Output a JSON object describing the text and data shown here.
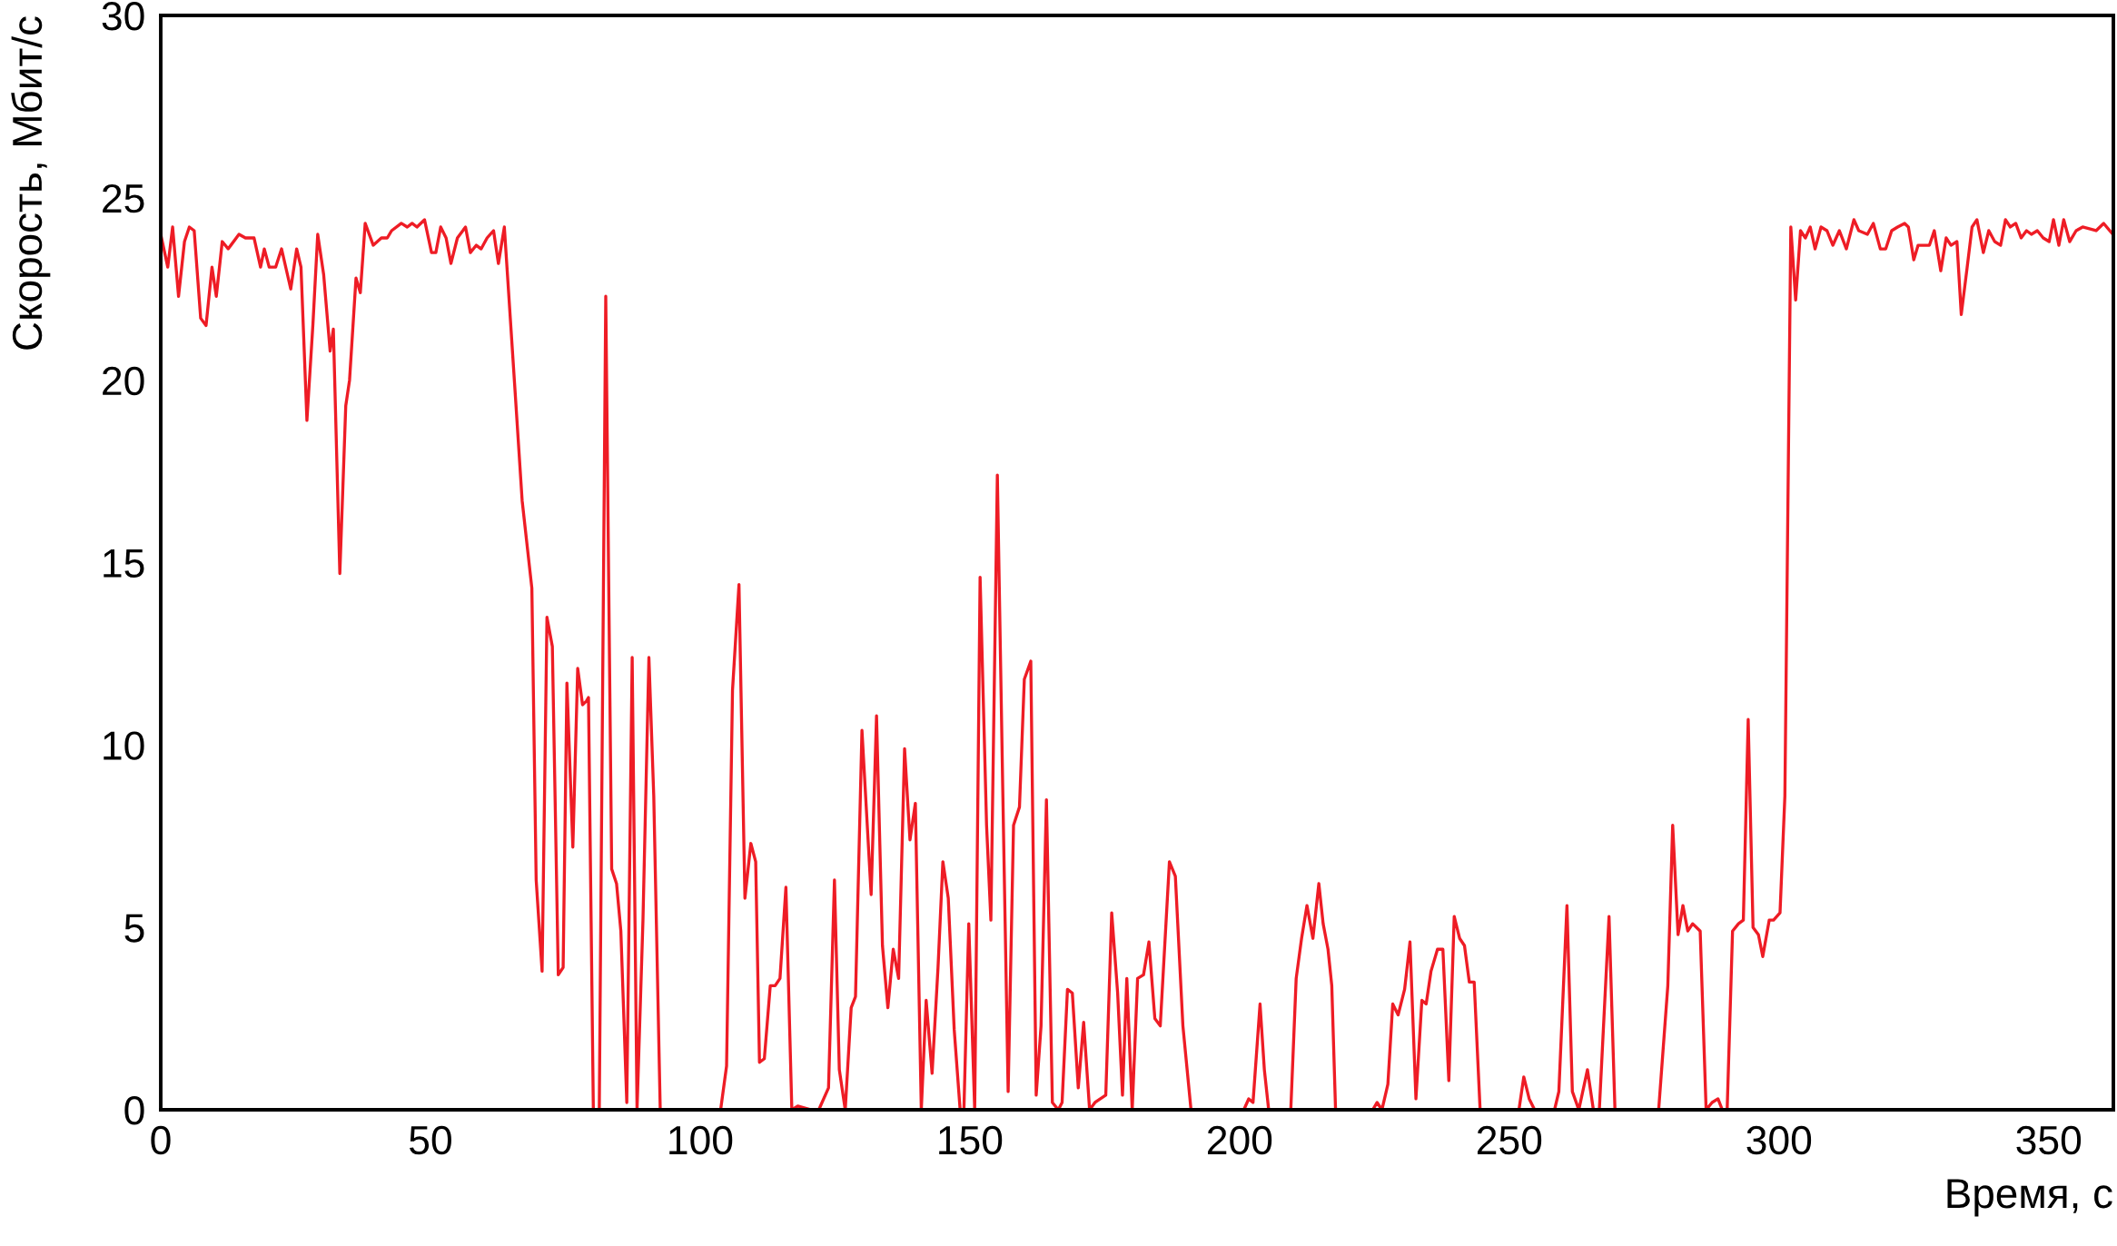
{
  "chart_data": {
    "type": "line",
    "xlabel": "Время, с",
    "ylabel": "Скорость, Мбит/с",
    "xlim": [
      0,
      362
    ],
    "ylim": [
      0,
      30
    ],
    "xticks": [
      0,
      50,
      100,
      150,
      200,
      250,
      300,
      350
    ],
    "yticks": [
      0,
      5,
      10,
      15,
      20,
      25,
      30
    ],
    "grid": false,
    "series": [
      {
        "color": "#ee1c25",
        "x": [
          0,
          1.3,
          2.2,
          3.3,
          4.4,
          5.3,
          6.2,
          7.4,
          8.4,
          9.5,
          10.3,
          11.4,
          12.5,
          14.5,
          15.7,
          17.3,
          18.5,
          19.2,
          20.1,
          21.3,
          22.4,
          24.1,
          25.2,
          26.0,
          27.1,
          28.2,
          29.1,
          30.2,
          31.4,
          32.0,
          33.2,
          34.3,
          35.0,
          36.2,
          37.0,
          37.9,
          39.4,
          40.9,
          42.0,
          42.8,
          44.6,
          45.7,
          46.6,
          47.5,
          48.9,
          50.2,
          51.0,
          51.9,
          52.9,
          53.8,
          55.0,
          56.5,
          57.4,
          58.5,
          59.4,
          60.5,
          61.7,
          62.6,
          63.7,
          65.6,
          67.0,
          68.8,
          69.6,
          70.7,
          71.6,
          72.6,
          73.7,
          74.6,
          75.3,
          76.4,
          77.3,
          78.2,
          78.9,
          79.3,
          80.2,
          81.3,
          82.5,
          83.6,
          84.5,
          85.3,
          86.4,
          87.4,
          88.3,
          89.4,
          90.5,
          91.4,
          92.6,
          103.8,
          104.9,
          106.0,
          107.2,
          108.3,
          109.4,
          110.3,
          111.0,
          111.9,
          113.0,
          113.9,
          114.8,
          115.9,
          117.0,
          118.1,
          120.6,
          122.0,
          123.8,
          124.9,
          125.8,
          126.9,
          128.0,
          128.8,
          130.0,
          131.7,
          132.7,
          133.8,
          134.8,
          135.8,
          136.8,
          137.9,
          138.9,
          139.9,
          141.0,
          141.9,
          143.0,
          144.1,
          145.0,
          146.0,
          147.1,
          148.2,
          148.9,
          149.8,
          150.9,
          151.9,
          153.1,
          153.9,
          155.1,
          156.1,
          157.1,
          158.1,
          159.2,
          160.1,
          161.3,
          162.3,
          163.2,
          164.2,
          165.3,
          166.4,
          167.1,
          168.1,
          169.0,
          170.1,
          171.1,
          172.2,
          173.2,
          175.2,
          176.3,
          177.4,
          178.3,
          179.1,
          180.1,
          181.1,
          182.2,
          183.2,
          184.3,
          185.3,
          187.0,
          188.1,
          189.5,
          191.0,
          200.8,
          201.7,
          202.5,
          203.8,
          204.6,
          205.4,
          209.5,
          210.5,
          211.5,
          212.5,
          213.6,
          214.7,
          215.5,
          216.4,
          217.1,
          217.8,
          224.7,
          225.5,
          226.4,
          227.5,
          228.4,
          229.4,
          230.6,
          231.6,
          232.7,
          233.8,
          234.6,
          235.5,
          236.7,
          237.7,
          238.8,
          239.8,
          240.8,
          241.7,
          242.6,
          243.5,
          244.6,
          251.8,
          252.7,
          253.7,
          254.7,
          258.4,
          259.2,
          260.7,
          261.7,
          262.9,
          264.5,
          265.6,
          266.7,
          268.5,
          269.6,
          277.7,
          279.4,
          280.3,
          281.3,
          282.2,
          283.1,
          284.0,
          285.4,
          286.5,
          287.6,
          288.7,
          289.5,
          290.4,
          291.4,
          292.5,
          293.4,
          294.3,
          295.2,
          296.2,
          297.0,
          298.2,
          299.0,
          300.2,
          301.1,
          302.2,
          303.1,
          304.0,
          304.9,
          305.8,
          306.7,
          307.8,
          308.9,
          310.0,
          311.2,
          312.5,
          313.9,
          314.8,
          316.4,
          317.5,
          318.8,
          319.8,
          320.9,
          322.0,
          323.3,
          324.0,
          325.0,
          325.8,
          327.9,
          328.8,
          330.0,
          331.0,
          331.9,
          333.0,
          333.8,
          334.9,
          335.8,
          336.7,
          337.9,
          338.9,
          340.0,
          341.1,
          342.0,
          342.9,
          343.9,
          344.9,
          345.9,
          346.8,
          347.9,
          349.0,
          350.1,
          350.9,
          351.9,
          352.8,
          353.9,
          355.1,
          356.3,
          358.8,
          360.2,
          361.9
        ],
        "values": [
          24.0,
          23.1,
          24.2,
          22.3,
          23.8,
          24.2,
          24.1,
          21.7,
          21.5,
          23.1,
          22.3,
          23.8,
          23.6,
          24.0,
          23.9,
          23.9,
          23.1,
          23.6,
          23.1,
          23.1,
          23.6,
          22.5,
          23.6,
          23.1,
          18.9,
          21.5,
          24.0,
          22.9,
          20.8,
          21.4,
          14.7,
          19.3,
          20.0,
          22.8,
          22.4,
          24.3,
          23.7,
          23.9,
          23.9,
          24.1,
          24.3,
          24.2,
          24.3,
          24.2,
          24.4,
          23.5,
          23.5,
          24.2,
          23.9,
          23.2,
          23.9,
          24.2,
          23.5,
          23.7,
          23.6,
          23.9,
          24.1,
          23.2,
          24.2,
          19.9,
          16.7,
          14.3,
          6.3,
          3.8,
          13.5,
          12.7,
          3.7,
          3.9,
          11.7,
          7.2,
          12.1,
          11.1,
          11.2,
          11.3,
          0,
          0,
          22.3,
          6.6,
          6.2,
          4.9,
          0.2,
          12.4,
          0,
          5.2,
          12.4,
          8.6,
          0,
          0,
          1.2,
          11.5,
          14.4,
          5.8,
          7.3,
          6.8,
          1.3,
          1.4,
          3.4,
          3.4,
          3.6,
          6.1,
          0,
          0.1,
          0,
          0,
          0.6,
          6.3,
          1.1,
          0,
          2.8,
          3.1,
          10.4,
          5.9,
          10.8,
          4.5,
          2.8,
          4.4,
          3.6,
          9.9,
          7.4,
          8.4,
          0,
          3.0,
          1.0,
          3.9,
          6.8,
          5.8,
          2.2,
          0,
          0,
          5.1,
          0,
          14.6,
          7.8,
          5.2,
          17.4,
          8.8,
          0.5,
          7.8,
          8.3,
          11.8,
          12.3,
          0.4,
          2.3,
          8.5,
          0.2,
          0,
          0.2,
          3.3,
          3.2,
          0.6,
          2.4,
          0,
          0.2,
          0.4,
          5.4,
          3.2,
          0.4,
          3.6,
          0,
          3.6,
          3.7,
          4.6,
          2.5,
          2.3,
          6.8,
          6.4,
          2.3,
          0,
          0,
          0.3,
          0.2,
          2.9,
          1.1,
          0,
          0,
          3.6,
          4.7,
          5.6,
          4.7,
          6.2,
          5.1,
          4.4,
          3.4,
          0,
          0,
          0.2,
          0,
          0.7,
          2.9,
          2.6,
          3.3,
          4.6,
          0.3,
          3.0,
          2.9,
          3.8,
          4.4,
          4.4,
          0.8,
          5.3,
          4.7,
          4.5,
          3.5,
          3.5,
          0,
          0,
          0.9,
          0.3,
          0,
          0,
          0.5,
          5.6,
          0.5,
          0,
          1.1,
          0,
          0,
          5.3,
          0,
          0,
          3.4,
          7.8,
          4.8,
          5.6,
          4.9,
          5.1,
          4.9,
          0,
          0.2,
          0.3,
          0,
          0,
          4.9,
          5.1,
          5.2,
          10.7,
          5.0,
          4.8,
          4.2,
          5.2,
          5.2,
          5.4,
          8.6,
          24.2,
          22.2,
          24.1,
          23.9,
          24.2,
          23.6,
          24.2,
          24.1,
          23.7,
          24.1,
          23.6,
          24.4,
          24.1,
          24.0,
          24.3,
          23.6,
          23.6,
          24.1,
          24.2,
          24.3,
          24.2,
          23.3,
          23.7,
          23.7,
          24.1,
          23.0,
          23.9,
          23.7,
          23.8,
          21.8,
          23.1,
          24.2,
          24.4,
          23.5,
          24.1,
          23.8,
          23.7,
          24.4,
          24.2,
          24.3,
          23.9,
          24.1,
          24.0,
          24.1,
          23.9,
          23.8,
          24.4,
          23.7,
          24.4,
          23.8,
          24.1,
          24.2,
          24.1,
          24.3,
          24.0
        ]
      }
    ]
  }
}
